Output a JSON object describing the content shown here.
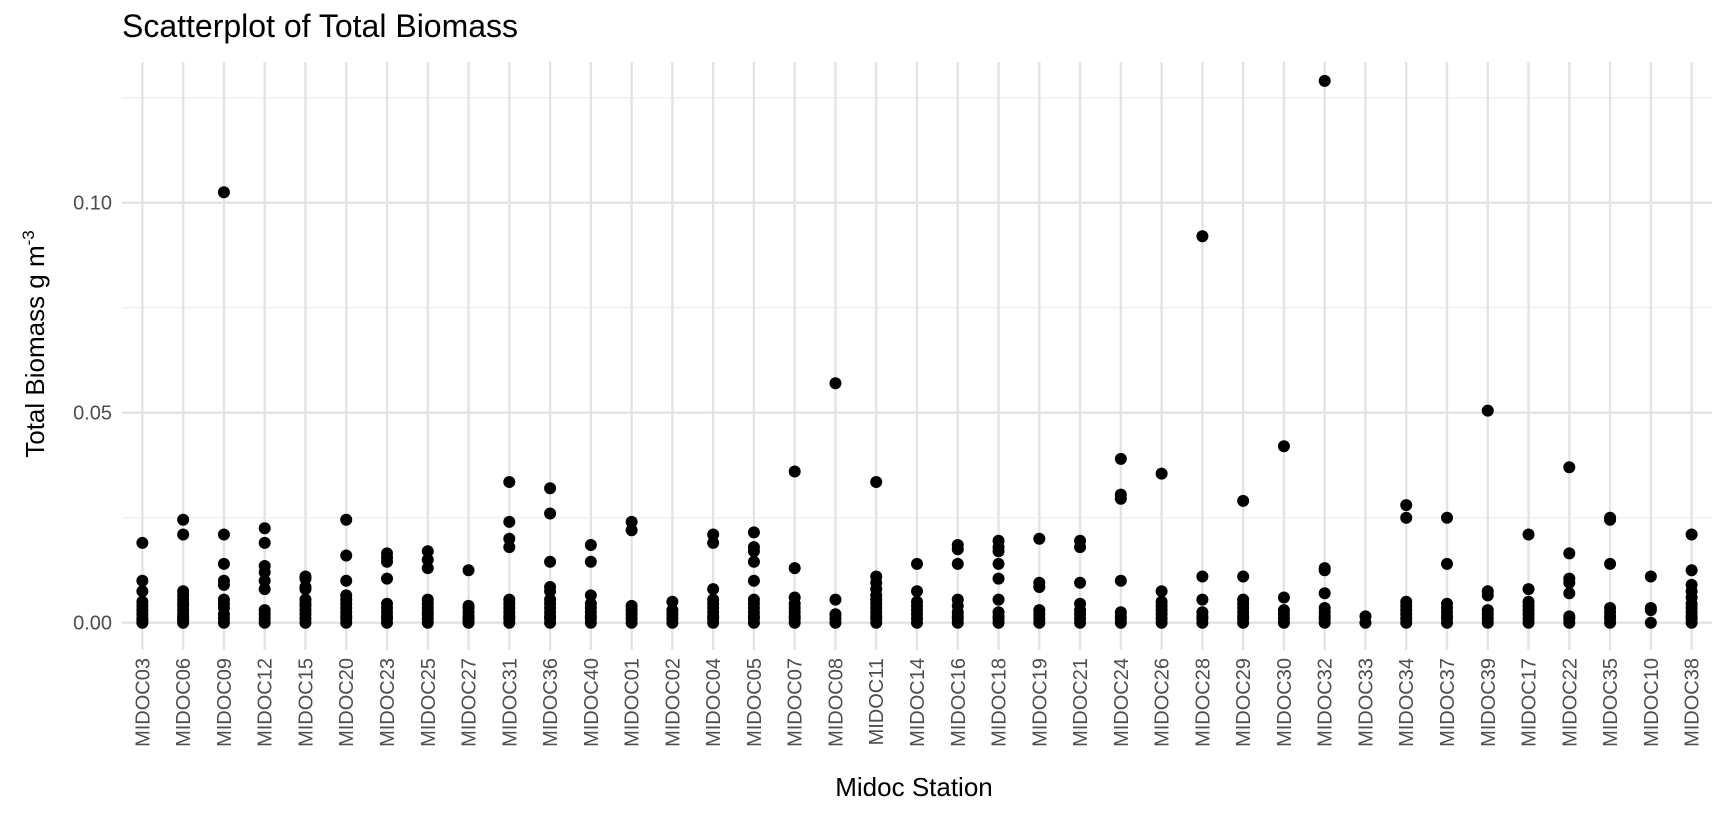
{
  "chart_data": {
    "type": "scatter",
    "title": "Scatterplot of Total Biomass",
    "xlabel": "Midoc Station",
    "ylabel_main": "Total Biomass g m",
    "ylabel_sup": "-3",
    "ylim": [
      -0.0065,
      0.1335
    ],
    "yticks": [
      0.0,
      0.05,
      0.1
    ],
    "ytick_labels": [
      "0.00",
      "0.05",
      "0.10"
    ],
    "grid": true,
    "legend": "none",
    "point_color": "#000000",
    "categories": [
      "MIDOC03",
      "MIDOC06",
      "MIDOC09",
      "MIDOC12",
      "MIDOC15",
      "MIDOC20",
      "MIDOC23",
      "MIDOC25",
      "MIDOC27",
      "MIDOC31",
      "MIDOC36",
      "MIDOC40",
      "MIDOC01",
      "MIDOC02",
      "MIDOC04",
      "MIDOC05",
      "MIDOC07",
      "MIDOC08",
      "MIDOC11",
      "MIDOC14",
      "MIDOC16",
      "MIDOC18",
      "MIDOC19",
      "MIDOC21",
      "MIDOC24",
      "MIDOC26",
      "MIDOC28",
      "MIDOC29",
      "MIDOC30",
      "MIDOC32",
      "MIDOC33",
      "MIDOC34",
      "MIDOC37",
      "MIDOC39",
      "MIDOC17",
      "MIDOC22",
      "MIDOC35",
      "MIDOC10",
      "MIDOC38"
    ],
    "points": [
      [
        0.019,
        0.01,
        0.0075,
        0.005,
        0.004,
        0.003,
        0.002,
        0.001,
        0.0005,
        0.0
      ],
      [
        0.0245,
        0.021,
        0.0075,
        0.0065,
        0.0055,
        0.0045,
        0.004,
        0.003,
        0.002,
        0.0015,
        0.001,
        0.0005,
        0.0
      ],
      [
        0.1025,
        0.021,
        0.014,
        0.01,
        0.009,
        0.0055,
        0.0045,
        0.0035,
        0.002,
        0.001,
        0.0
      ],
      [
        0.0225,
        0.019,
        0.0135,
        0.012,
        0.01,
        0.008,
        0.003,
        0.002,
        0.001,
        0.0
      ],
      [
        0.011,
        0.0105,
        0.0085,
        0.008,
        0.0055,
        0.0045,
        0.004,
        0.003,
        0.002,
        0.001,
        0.0
      ],
      [
        0.0245,
        0.016,
        0.01,
        0.0065,
        0.0055,
        0.0045,
        0.0035,
        0.0025,
        0.0015,
        0.001,
        0.0
      ],
      [
        0.0165,
        0.0155,
        0.0145,
        0.0105,
        0.0045,
        0.0035,
        0.0025,
        0.0015,
        0.001,
        0.0
      ],
      [
        0.017,
        0.015,
        0.013,
        0.0055,
        0.0045,
        0.0035,
        0.0025,
        0.002,
        0.001,
        0.0
      ],
      [
        0.0125,
        0.004,
        0.0035,
        0.0025,
        0.0015,
        0.001,
        0.0005,
        0.0
      ],
      [
        0.0335,
        0.024,
        0.02,
        0.018,
        0.0055,
        0.0045,
        0.0035,
        0.0025,
        0.0015,
        0.001,
        0.0
      ],
      [
        0.032,
        0.026,
        0.0145,
        0.0085,
        0.0075,
        0.0055,
        0.0045,
        0.0035,
        0.0025,
        0.0015,
        0.001,
        0.0
      ],
      [
        0.0185,
        0.0145,
        0.0065,
        0.0045,
        0.0035,
        0.0025,
        0.0015,
        0.001,
        0.0
      ],
      [
        0.024,
        0.022,
        0.004,
        0.003,
        0.002,
        0.001,
        0.0
      ],
      [
        0.005,
        0.003,
        0.002,
        0.001,
        0.0
      ],
      [
        0.021,
        0.019,
        0.008,
        0.0055,
        0.0045,
        0.0035,
        0.0025,
        0.0015,
        0.001,
        0.0
      ],
      [
        0.0215,
        0.018,
        0.017,
        0.0145,
        0.01,
        0.0055,
        0.0045,
        0.0035,
        0.0025,
        0.0015,
        0.001,
        0.0
      ],
      [
        0.036,
        0.013,
        0.006,
        0.0045,
        0.0035,
        0.0025,
        0.0015,
        0.001,
        0.0
      ],
      [
        0.057,
        0.0055,
        0.002,
        0.001,
        0.0
      ],
      [
        0.0335,
        0.011,
        0.0095,
        0.008,
        0.0065,
        0.0055,
        0.0045,
        0.0035,
        0.0025,
        0.0015,
        0.001,
        0.0
      ],
      [
        0.014,
        0.0075,
        0.005,
        0.004,
        0.003,
        0.002,
        0.001,
        0.0
      ],
      [
        0.0185,
        0.0175,
        0.014,
        0.0055,
        0.004,
        0.0025,
        0.0015,
        0.001,
        0.0
      ],
      [
        0.0195,
        0.018,
        0.017,
        0.014,
        0.0105,
        0.0055,
        0.0025,
        0.0015,
        0.001,
        0.0
      ],
      [
        0.02,
        0.0095,
        0.0085,
        0.003,
        0.002,
        0.001,
        0.0
      ],
      [
        0.0195,
        0.018,
        0.0095,
        0.0045,
        0.003,
        0.002,
        0.001,
        0.0
      ],
      [
        0.039,
        0.0305,
        0.0295,
        0.01,
        0.0025,
        0.0015,
        0.001,
        0.0
      ],
      [
        0.0355,
        0.0075,
        0.005,
        0.004,
        0.003,
        0.002,
        0.001,
        0.0
      ],
      [
        0.092,
        0.011,
        0.0055,
        0.0025,
        0.0015,
        0.001,
        0.0
      ],
      [
        0.029,
        0.011,
        0.0055,
        0.0045,
        0.0035,
        0.0025,
        0.0015,
        0.001,
        0.0
      ],
      [
        0.042,
        0.006,
        0.003,
        0.002,
        0.001,
        0.0
      ],
      [
        0.129,
        0.013,
        0.0125,
        0.007,
        0.0035,
        0.0025,
        0.0015,
        0.001,
        0.0
      ],
      [
        0.0015,
        0.0
      ],
      [
        0.028,
        0.025,
        0.005,
        0.004,
        0.003,
        0.002,
        0.001,
        0.0
      ],
      [
        0.025,
        0.014,
        0.0045,
        0.0035,
        0.0025,
        0.0015,
        0.001,
        0.0
      ],
      [
        0.0505,
        0.0075,
        0.0065,
        0.003,
        0.002,
        0.001,
        0.0
      ],
      [
        0.021,
        0.008,
        0.005,
        0.004,
        0.003,
        0.002,
        0.001,
        0.0
      ],
      [
        0.037,
        0.0165,
        0.0105,
        0.0095,
        0.007,
        0.0015,
        0.001,
        0.0
      ],
      [
        0.025,
        0.0245,
        0.014,
        0.0035,
        0.0025,
        0.0015,
        0.001,
        0.0
      ],
      [
        0.011,
        0.0035,
        0.003,
        0.0
      ],
      [
        0.021,
        0.0125,
        0.009,
        0.0075,
        0.006,
        0.0045,
        0.0035,
        0.0025,
        0.0015,
        0.001,
        0.0
      ]
    ]
  }
}
